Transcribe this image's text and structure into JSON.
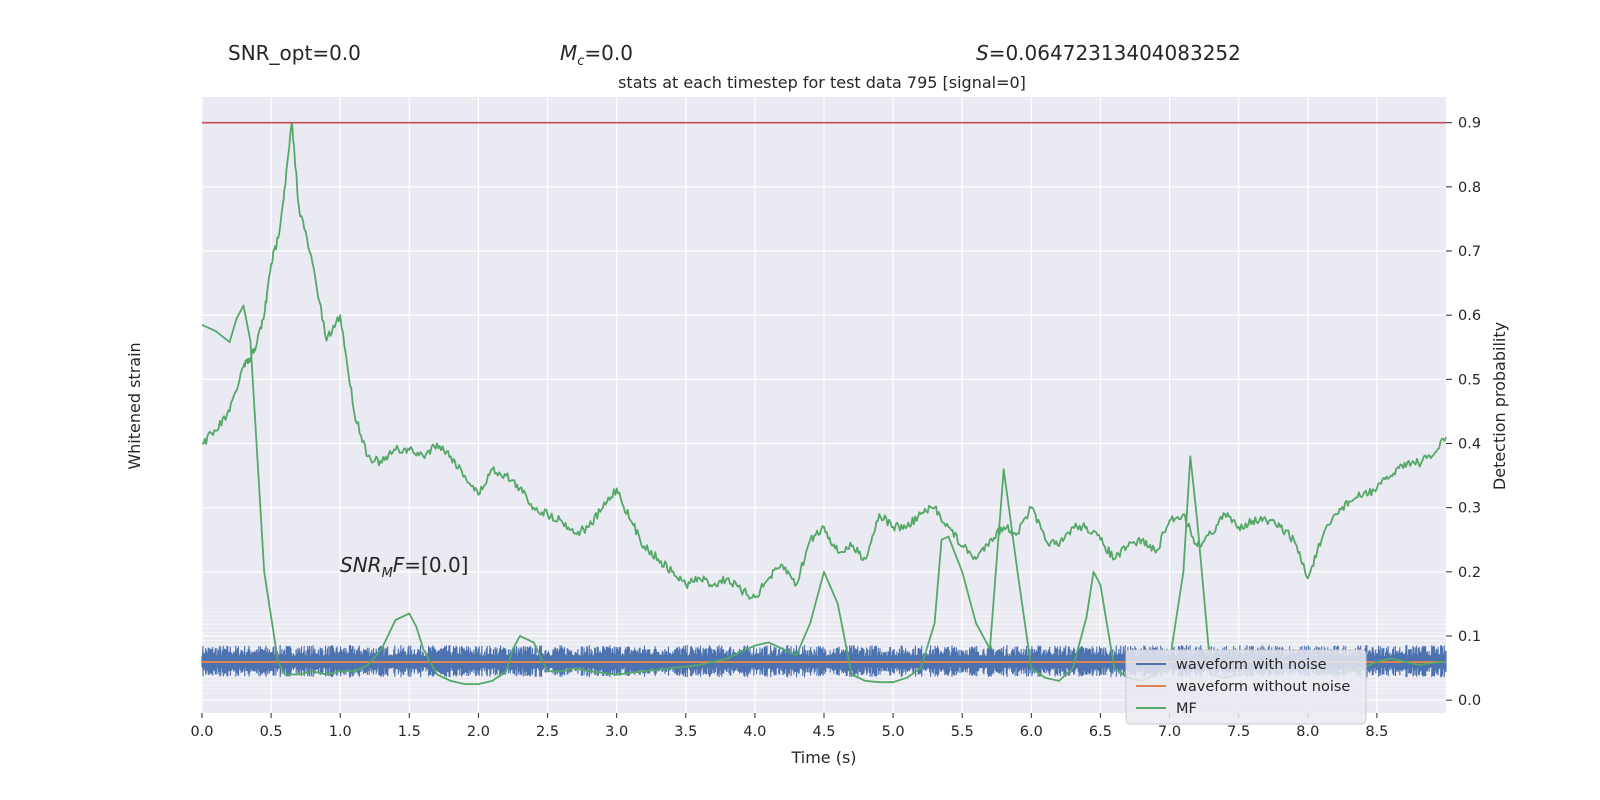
{
  "header": {
    "snr_opt": "SNR_opt=0.0",
    "mc_sym": "M",
    "mc_sub": "c",
    "mc_val": "=0.0",
    "s_sym": "S",
    "s_val": "=0.06472313404083252",
    "snr_mf_sym": "SNR",
    "snr_mf_sub": "M",
    "snr_mf_f": "F",
    "snr_mf_val": "=[0.0]"
  },
  "chart_data": {
    "type": "line",
    "title": "stats at each timestep for test data 795 [signal=0]",
    "xlabel": "Time (s)",
    "ylabel_left": "Whitened strain",
    "ylabel_right": "Detection probability",
    "xlim": [
      0.0,
      9.0
    ],
    "ylim_right": [
      -0.02,
      0.94
    ],
    "xticks": [
      "0.0",
      "0.5",
      "1.0",
      "1.5",
      "2.0",
      "2.5",
      "3.0",
      "3.5",
      "4.0",
      "4.5",
      "5.0",
      "5.5",
      "6.0",
      "6.5",
      "7.0",
      "7.5",
      "8.0",
      "8.5"
    ],
    "yticks_right": [
      "0.0",
      "0.1",
      "0.2",
      "0.3",
      "0.4",
      "0.5",
      "0.6",
      "0.7",
      "0.8",
      "0.9"
    ],
    "threshold": 0.9,
    "grid": true,
    "legend_position": "lower-right",
    "colors": {
      "background": "#eaeaf2",
      "grid": "#ffffff",
      "noisy": "#4c72b0",
      "clean": "#dd8452",
      "mf": "#55a868",
      "prob": "#55a868",
      "threshold": "#c44e52"
    },
    "series": [
      {
        "name": "waveform with noise",
        "x": [
          0.0,
          9.0
        ],
        "values": [
          0.0,
          0.0
        ]
      },
      {
        "name": "waveform without noise",
        "x": [
          0.0,
          9.0
        ],
        "values": [
          0.0,
          0.0
        ]
      },
      {
        "name": "MF",
        "x": [
          0.0,
          0.1,
          0.2,
          0.25,
          0.3,
          0.35,
          0.4,
          0.45,
          0.5,
          0.55,
          0.6,
          0.7,
          0.8,
          0.9,
          1.0,
          1.1,
          1.2,
          1.3,
          1.4,
          1.5,
          1.55,
          1.6,
          1.7,
          1.8,
          1.9,
          2.0,
          2.1,
          2.2,
          2.25,
          2.3,
          2.4,
          2.5,
          2.6,
          2.7,
          2.8,
          3.0,
          3.2,
          3.4,
          3.6,
          3.8,
          4.0,
          4.1,
          4.2,
          4.3,
          4.4,
          4.5,
          4.6,
          4.7,
          4.8,
          4.9,
          5.0,
          5.1,
          5.2,
          5.3,
          5.35,
          5.4,
          5.5,
          5.6,
          5.7,
          5.8,
          5.9,
          6.0,
          6.1,
          6.2,
          6.3,
          6.4,
          6.45,
          6.5,
          6.6,
          6.7,
          6.8,
          6.9,
          7.0,
          7.1,
          7.15,
          7.2,
          7.3,
          7.4,
          7.5,
          7.6,
          7.7,
          7.8,
          7.9,
          8.0,
          8.1,
          8.2,
          8.3,
          8.4,
          8.5,
          8.6,
          8.7,
          8.8,
          8.9,
          9.0
        ],
        "values": [
          0.585,
          0.575,
          0.558,
          0.595,
          0.615,
          0.56,
          0.38,
          0.2,
          0.13,
          0.06,
          0.04,
          0.04,
          0.045,
          0.04,
          0.045,
          0.045,
          0.055,
          0.08,
          0.125,
          0.135,
          0.115,
          0.08,
          0.04,
          0.03,
          0.025,
          0.025,
          0.03,
          0.045,
          0.08,
          0.1,
          0.09,
          0.045,
          0.045,
          0.05,
          0.045,
          0.04,
          0.045,
          0.05,
          0.055,
          0.065,
          0.085,
          0.09,
          0.08,
          0.07,
          0.12,
          0.2,
          0.15,
          0.04,
          0.03,
          0.028,
          0.028,
          0.035,
          0.05,
          0.12,
          0.25,
          0.255,
          0.2,
          0.12,
          0.08,
          0.36,
          0.2,
          0.05,
          0.035,
          0.03,
          0.05,
          0.13,
          0.2,
          0.18,
          0.05,
          0.035,
          0.03,
          0.04,
          0.06,
          0.2,
          0.38,
          0.28,
          0.04,
          0.035,
          0.04,
          0.045,
          0.05,
          0.045,
          0.05,
          0.05,
          0.045,
          0.04,
          0.045,
          0.05,
          0.06,
          0.065,
          0.06,
          0.055,
          0.058,
          0.06
        ]
      },
      {
        "name": "",
        "x": [
          0.0,
          0.1,
          0.2,
          0.3,
          0.35,
          0.4,
          0.45,
          0.5,
          0.55,
          0.6,
          0.65,
          0.7,
          0.8,
          0.9,
          1.0,
          1.1,
          1.2,
          1.3,
          1.4,
          1.5,
          1.6,
          1.7,
          1.8,
          1.9,
          2.0,
          2.1,
          2.2,
          2.3,
          2.4,
          2.5,
          2.6,
          2.7,
          2.8,
          2.9,
          3.0,
          3.1,
          3.2,
          3.3,
          3.4,
          3.5,
          3.6,
          3.7,
          3.8,
          3.9,
          4.0,
          4.1,
          4.2,
          4.3,
          4.4,
          4.5,
          4.6,
          4.7,
          4.8,
          4.9,
          5.0,
          5.1,
          5.2,
          5.3,
          5.4,
          5.5,
          5.6,
          5.7,
          5.8,
          5.9,
          6.0,
          6.1,
          6.2,
          6.3,
          6.4,
          6.5,
          6.6,
          6.7,
          6.8,
          6.9,
          7.0,
          7.1,
          7.2,
          7.3,
          7.4,
          7.5,
          7.6,
          7.7,
          7.8,
          7.9,
          8.0,
          8.1,
          8.2,
          8.3,
          8.4,
          8.5,
          8.6,
          8.7,
          8.8,
          8.9,
          9.0
        ],
        "values": [
          0.4,
          0.42,
          0.45,
          0.52,
          0.53,
          0.56,
          0.6,
          0.68,
          0.72,
          0.8,
          0.9,
          0.77,
          0.68,
          0.56,
          0.6,
          0.45,
          0.38,
          0.37,
          0.39,
          0.39,
          0.38,
          0.4,
          0.38,
          0.35,
          0.32,
          0.36,
          0.35,
          0.33,
          0.3,
          0.29,
          0.28,
          0.26,
          0.27,
          0.3,
          0.33,
          0.28,
          0.24,
          0.22,
          0.2,
          0.18,
          0.19,
          0.18,
          0.19,
          0.17,
          0.16,
          0.19,
          0.21,
          0.18,
          0.25,
          0.27,
          0.23,
          0.24,
          0.22,
          0.29,
          0.27,
          0.27,
          0.29,
          0.3,
          0.27,
          0.24,
          0.22,
          0.25,
          0.27,
          0.26,
          0.3,
          0.25,
          0.24,
          0.27,
          0.27,
          0.25,
          0.22,
          0.24,
          0.25,
          0.23,
          0.28,
          0.29,
          0.24,
          0.26,
          0.29,
          0.27,
          0.28,
          0.28,
          0.27,
          0.25,
          0.19,
          0.25,
          0.29,
          0.31,
          0.32,
          0.33,
          0.35,
          0.37,
          0.37,
          0.38,
          0.41
        ]
      }
    ]
  }
}
